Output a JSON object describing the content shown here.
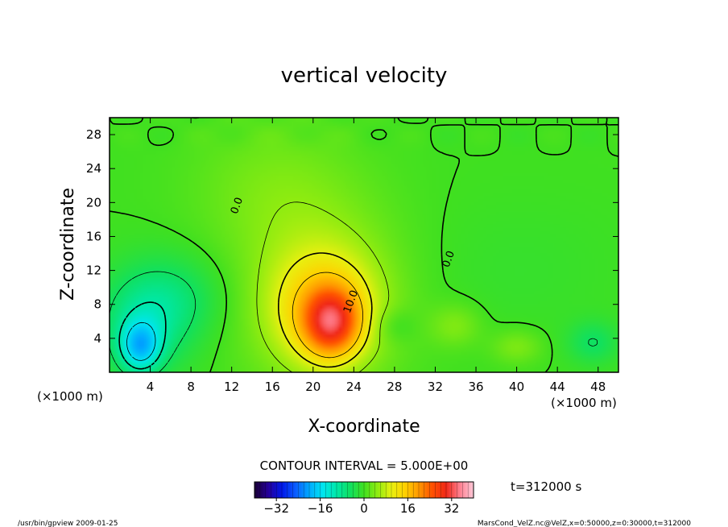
{
  "chart_data": {
    "type": "heatmap",
    "title": "vertical velocity",
    "xlabel": "X-coordinate",
    "ylabel": "Z-coordinate",
    "x_unit": "(×1000 m)",
    "y_unit": "(×1000 m)",
    "xlim": [
      0,
      50
    ],
    "ylim": [
      0,
      30
    ],
    "x_ticks": [
      4,
      8,
      12,
      16,
      20,
      24,
      28,
      32,
      36,
      40,
      44,
      48
    ],
    "y_ticks": [
      4,
      8,
      12,
      16,
      20,
      24,
      28
    ],
    "contour_interval_text": "CONTOUR INTERVAL = 5.000E+00",
    "contour_labels": [
      {
        "text": "10.0",
        "x": 24.0,
        "z": 8.2
      },
      {
        "text": "0.0",
        "x": 12.8,
        "z": 19.5
      },
      {
        "text": "0.0",
        "x": 33.6,
        "z": 13.2
      }
    ],
    "colorbar": {
      "range": [
        -40,
        40
      ],
      "ticks": [
        -32,
        -16,
        0,
        16,
        32
      ],
      "colors": [
        "#1a0033",
        "#25009a",
        "#0018e8",
        "#0a5cff",
        "#00aaff",
        "#00e6f0",
        "#00e8a8",
        "#10e060",
        "#40e020",
        "#90ec10",
        "#e8f010",
        "#ffd000",
        "#ff9800",
        "#ff5000",
        "#f02818",
        "#ff8090",
        "#ffc8d8"
      ]
    },
    "time_label": "t=312000 s",
    "footer_left": "/usr/bin/gpview  2009-01-25",
    "footer_right": "MarsCond_VelZ.nc@VelZ,x=0:50000,z=0:30000,t=312000",
    "blobs": [
      {
        "x": 20.5,
        "z": 9.5,
        "rx": 8.0,
        "rz": 11.0,
        "w": 6
      },
      {
        "x": 21.2,
        "z": 7.3,
        "rx": 5.0,
        "rz": 6.5,
        "w": 12
      },
      {
        "x": 21.8,
        "z": 5.8,
        "rx": 2.6,
        "rz": 3.8,
        "w": 18
      },
      {
        "x": 3.5,
        "z": 6.0,
        "rx": 4.5,
        "rz": 6.0,
        "w": -8
      },
      {
        "x": 3.0,
        "z": 3.0,
        "rx": 2.0,
        "rz": 3.0,
        "w": -14
      },
      {
        "x": 7.0,
        "z": 9.0,
        "rx": 5.0,
        "rz": 5.0,
        "w": -4
      },
      {
        "x": 34.0,
        "z": 5.5,
        "rx": 2.5,
        "rz": 2.5,
        "w": 4
      },
      {
        "x": 40.0,
        "z": 3.0,
        "rx": 2.5,
        "rz": 2.0,
        "w": 4
      },
      {
        "x": 47.5,
        "z": 3.5,
        "rx": 2.5,
        "rz": 2.5,
        "w": -5
      },
      {
        "x": 28.0,
        "z": 5.5,
        "rx": 2.0,
        "rz": 2.0,
        "w": -3
      },
      {
        "x": 16.0,
        "z": 22.0,
        "rx": 8.0,
        "rz": 8.0,
        "w": 3
      },
      {
        "x": 40.0,
        "z": 12.0,
        "rx": 10.0,
        "rz": 8.0,
        "w": -1
      }
    ]
  }
}
